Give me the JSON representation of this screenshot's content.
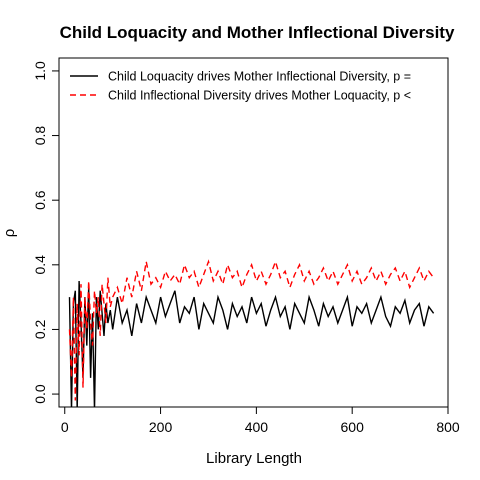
{
  "chart_data": {
    "type": "line",
    "title": "Child Loquacity and Mother Inflectional Diversity",
    "xlabel": "Library Length",
    "ylabel": "ρ",
    "xlim": [
      -12,
      800
    ],
    "ylim": [
      -0.04,
      1.04
    ],
    "xticks": [
      "0",
      "200",
      "400",
      "600",
      "800"
    ],
    "yticks": [
      "0.0",
      "0.2",
      "0.4",
      "0.6",
      "0.8",
      "1.0"
    ],
    "grid": false,
    "legend_position": "top",
    "series": [
      {
        "name": "Child Loquacity drives Mother Inflectional Diversity, p =",
        "color": "#000000",
        "style": "solid",
        "x": [
          10,
          14,
          18,
          22,
          26,
          30,
          34,
          38,
          42,
          46,
          50,
          54,
          58,
          62,
          66,
          70,
          74,
          78,
          82,
          86,
          90,
          95,
          100,
          110,
          120,
          130,
          140,
          150,
          160,
          170,
          180,
          190,
          200,
          210,
          220,
          230,
          240,
          250,
          260,
          270,
          280,
          290,
          300,
          310,
          320,
          330,
          340,
          350,
          360,
          370,
          380,
          390,
          400,
          410,
          420,
          430,
          440,
          450,
          460,
          470,
          480,
          490,
          500,
          510,
          520,
          530,
          540,
          550,
          560,
          570,
          580,
          590,
          600,
          610,
          620,
          630,
          640,
          650,
          660,
          670,
          680,
          690,
          700,
          710,
          720,
          730,
          740,
          750,
          760,
          770
        ],
        "values": [
          0.3,
          -0.05,
          0.28,
          0.32,
          -0.05,
          0.35,
          0.22,
          0.05,
          0.3,
          0.15,
          0.33,
          0.05,
          0.25,
          -0.05,
          0.3,
          0.2,
          0.32,
          0.25,
          0.18,
          0.28,
          0.22,
          0.26,
          0.2,
          0.3,
          0.22,
          0.26,
          0.18,
          0.28,
          0.22,
          0.3,
          0.26,
          0.22,
          0.3,
          0.24,
          0.28,
          0.32,
          0.22,
          0.27,
          0.25,
          0.3,
          0.2,
          0.28,
          0.25,
          0.22,
          0.3,
          0.26,
          0.2,
          0.28,
          0.24,
          0.27,
          0.22,
          0.3,
          0.25,
          0.28,
          0.21,
          0.26,
          0.3,
          0.24,
          0.27,
          0.2,
          0.28,
          0.25,
          0.22,
          0.3,
          0.26,
          0.21,
          0.28,
          0.24,
          0.27,
          0.22,
          0.26,
          0.3,
          0.21,
          0.27,
          0.25,
          0.28,
          0.22,
          0.26,
          0.3,
          0.24,
          0.21,
          0.27,
          0.25,
          0.29,
          0.22,
          0.26,
          0.28,
          0.21,
          0.27,
          0.25
        ]
      },
      {
        "name": "Child Inflectional Diversity drives Mother Loquacity, p <",
        "color": "#ff0000",
        "style": "dashed",
        "x": [
          10,
          14,
          18,
          22,
          26,
          30,
          34,
          38,
          42,
          46,
          50,
          54,
          58,
          62,
          66,
          70,
          74,
          78,
          82,
          86,
          90,
          95,
          100,
          110,
          120,
          130,
          140,
          150,
          160,
          170,
          180,
          190,
          200,
          210,
          220,
          230,
          240,
          250,
          260,
          270,
          280,
          290,
          300,
          310,
          320,
          330,
          340,
          350,
          360,
          370,
          380,
          390,
          400,
          410,
          420,
          430,
          440,
          450,
          460,
          470,
          480,
          490,
          500,
          510,
          520,
          530,
          540,
          550,
          560,
          570,
          580,
          590,
          600,
          610,
          620,
          630,
          640,
          650,
          660,
          670,
          680,
          690,
          700,
          710,
          720,
          730,
          740,
          750,
          760,
          770
        ],
        "values": [
          0.2,
          0.05,
          0.3,
          -0.02,
          0.28,
          0.12,
          0.34,
          0.02,
          0.3,
          0.2,
          0.35,
          0.22,
          0.15,
          0.32,
          0.25,
          0.3,
          0.18,
          0.34,
          0.28,
          0.22,
          0.36,
          0.27,
          0.3,
          0.33,
          0.28,
          0.36,
          0.3,
          0.38,
          0.32,
          0.41,
          0.34,
          0.36,
          0.33,
          0.38,
          0.35,
          0.37,
          0.34,
          0.4,
          0.36,
          0.38,
          0.33,
          0.37,
          0.41,
          0.35,
          0.38,
          0.34,
          0.4,
          0.36,
          0.38,
          0.33,
          0.37,
          0.4,
          0.35,
          0.38,
          0.34,
          0.37,
          0.41,
          0.36,
          0.38,
          0.33,
          0.37,
          0.4,
          0.35,
          0.38,
          0.34,
          0.36,
          0.39,
          0.35,
          0.38,
          0.34,
          0.37,
          0.4,
          0.35,
          0.38,
          0.34,
          0.36,
          0.39,
          0.35,
          0.38,
          0.34,
          0.37,
          0.39,
          0.35,
          0.38,
          0.33,
          0.36,
          0.39,
          0.35,
          0.38,
          0.36
        ]
      }
    ]
  }
}
